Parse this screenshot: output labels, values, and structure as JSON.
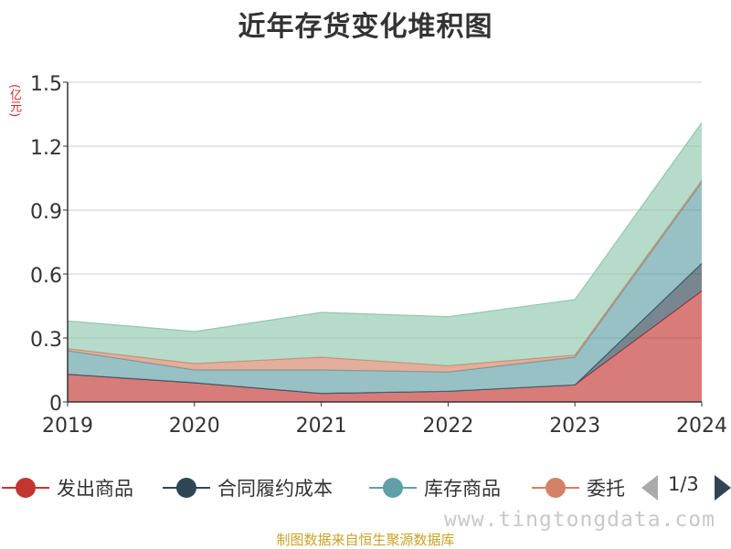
{
  "chart_data": {
    "type": "area",
    "stacked": true,
    "title": "近年存货变化堆积图",
    "unit_label": "(亿元)",
    "categories": [
      "2019",
      "2020",
      "2021",
      "2022",
      "2023",
      "2024"
    ],
    "ylim": [
      0,
      1.5
    ],
    "yticks": [
      "0",
      "0.3",
      "0.6",
      "0.9",
      "1.2",
      "1.5"
    ],
    "grid": true,
    "series": [
      {
        "name": "发出商品",
        "color": "#c23531",
        "values": [
          0.13,
          0.09,
          0.04,
          0.05,
          0.08,
          0.52
        ]
      },
      {
        "name": "合同履约成本",
        "color": "#2f4554",
        "values": [
          0.0,
          0.0,
          0.0,
          0.0,
          0.0,
          0.13
        ]
      },
      {
        "name": "库存商品",
        "color": "#61a0a8",
        "values": [
          0.11,
          0.06,
          0.11,
          0.09,
          0.13,
          0.38
        ]
      },
      {
        "name": "委托加工物资",
        "color": "#d48265",
        "values": [
          0.01,
          0.03,
          0.06,
          0.03,
          0.01,
          0.01
        ]
      },
      {
        "color": "#91c7ae",
        "values": [
          0.13,
          0.15,
          0.21,
          0.23,
          0.26,
          0.27
        ]
      }
    ],
    "legend": {
      "items": [
        {
          "label": "发出商品",
          "color": "#c23531"
        },
        {
          "label": "合同履约成本",
          "color": "#2f4554"
        },
        {
          "label": "库存商品",
          "color": "#61a0a8"
        },
        {
          "label": "委托",
          "color": "#d48265"
        }
      ],
      "page": "1/3",
      "placement": "bottom"
    }
  },
  "watermark": "www.tingtongdata.com",
  "source": "制图数据来自恒生聚源数据库"
}
